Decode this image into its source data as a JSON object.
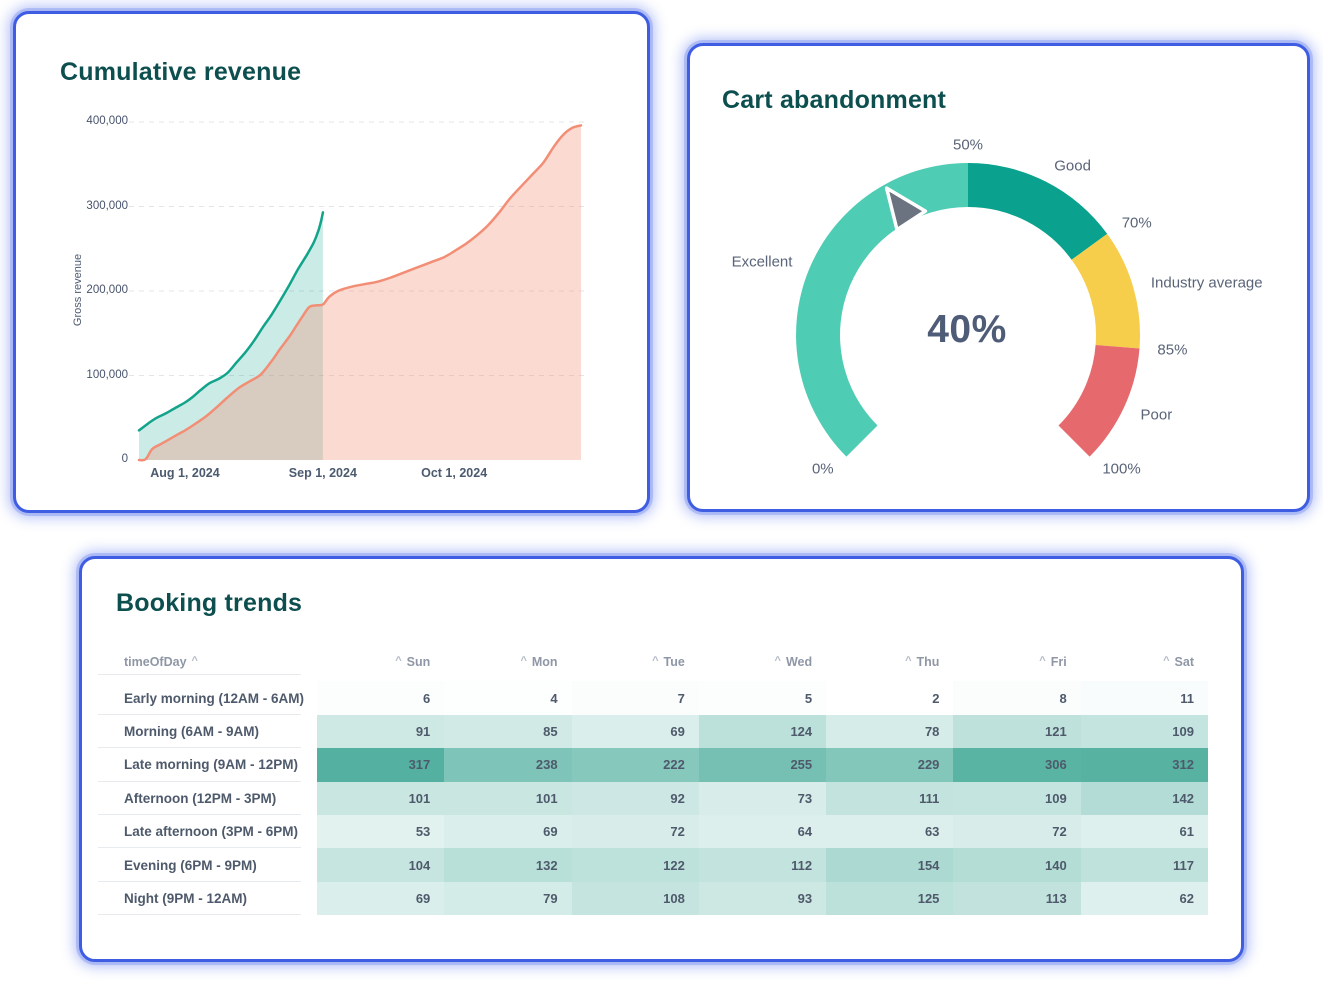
{
  "accent_border_color": "#3f5de2",
  "title_color": "#0d4f4e",
  "chart_data": [
    {
      "type": "area",
      "title": "Cumulative revenue",
      "xlabel": "",
      "ylabel": "Gross revenue",
      "ylim": [
        0,
        400000
      ],
      "grid": "horizontal-dashed",
      "legend": "none",
      "y_ticks": [
        {
          "value": 400000,
          "label": "400,000"
        },
        {
          "value": 300000,
          "label": "300,000"
        },
        {
          "value": 200000,
          "label": "200,000"
        },
        {
          "value": 100000,
          "label": "100,000"
        },
        {
          "value": 0,
          "label": "0"
        }
      ],
      "x_ticks": [
        {
          "t": 0.104,
          "label": "Aug 1, 2024"
        },
        {
          "t": 0.416,
          "label": "Sep 1, 2024"
        },
        {
          "t": 0.713,
          "label": "Oct 1, 2024"
        }
      ],
      "series": [
        {
          "name": "teal-series",
          "line_color": "#12a38b",
          "fill_color": "rgba(18,163,139,0.22)",
          "points": [
            [
              0,
              35000
            ],
            [
              0.02,
              43000
            ],
            [
              0.04,
              50000
            ],
            [
              0.06,
              55000
            ],
            [
              0.08,
              61000
            ],
            [
              0.104,
              68000
            ],
            [
              0.12,
              74000
            ],
            [
              0.14,
              83000
            ],
            [
              0.16,
              91000
            ],
            [
              0.18,
              96000
            ],
            [
              0.2,
              103000
            ],
            [
              0.22,
              115000
            ],
            [
              0.24,
              127000
            ],
            [
              0.26,
              141000
            ],
            [
              0.28,
              157000
            ],
            [
              0.3,
              172000
            ],
            [
              0.32,
              189000
            ],
            [
              0.34,
              207000
            ],
            [
              0.36,
              226000
            ],
            [
              0.38,
              243000
            ],
            [
              0.395,
              257000
            ],
            [
              0.405,
              270000
            ],
            [
              0.412,
              283000
            ],
            [
              0.416,
              293000
            ]
          ]
        },
        {
          "name": "orange-series",
          "line_color": "#f28e75",
          "fill_color": "rgba(242,142,117,0.33)",
          "points": [
            [
              0,
              0
            ],
            [
              0.015,
              1000
            ],
            [
              0.03,
              13000
            ],
            [
              0.05,
              19000
            ],
            [
              0.07,
              25000
            ],
            [
              0.09,
              31000
            ],
            [
              0.104,
              35000
            ],
            [
              0.125,
              42000
            ],
            [
              0.15,
              51000
            ],
            [
              0.175,
              62000
            ],
            [
              0.2,
              74000
            ],
            [
              0.225,
              85000
            ],
            [
              0.25,
              93000
            ],
            [
              0.275,
              101000
            ],
            [
              0.3,
              117000
            ],
            [
              0.32,
              132000
            ],
            [
              0.34,
              146000
            ],
            [
              0.355,
              158000
            ],
            [
              0.37,
              170000
            ],
            [
              0.385,
              181000
            ],
            [
              0.4,
              183000
            ],
            [
              0.416,
              184000
            ],
            [
              0.43,
              193000
            ],
            [
              0.45,
              200000
            ],
            [
              0.48,
              205000
            ],
            [
              0.51,
              208000
            ],
            [
              0.54,
              211000
            ],
            [
              0.57,
              216000
            ],
            [
              0.6,
              222000
            ],
            [
              0.63,
              228000
            ],
            [
              0.66,
              234000
            ],
            [
              0.69,
              240000
            ],
            [
              0.713,
              247000
            ],
            [
              0.74,
              256000
            ],
            [
              0.765,
              266000
            ],
            [
              0.79,
              278000
            ],
            [
              0.815,
              293000
            ],
            [
              0.84,
              310000
            ],
            [
              0.865,
              324000
            ],
            [
              0.89,
              338000
            ],
            [
              0.915,
              352000
            ],
            [
              0.94,
              372000
            ],
            [
              0.96,
              385000
            ],
            [
              0.98,
              393000
            ],
            [
              1,
              396000
            ]
          ]
        }
      ]
    },
    {
      "type": "gauge",
      "title": "Cart abandonment",
      "value": 40,
      "value_label": "40%",
      "min": 0,
      "max": 100,
      "start_angle_deg": 225,
      "end_angle_deg": -45,
      "needle_color": "#6b7280",
      "segments": [
        {
          "label": "Excellent",
          "from": 0,
          "to": 50,
          "color": "#4fccb4"
        },
        {
          "label": "Good",
          "from": 50,
          "to": 70,
          "color": "#0aa28e"
        },
        {
          "label": "Industry average",
          "from": 70,
          "to": 85,
          "color": "#f6ce4b"
        },
        {
          "label": "Poor",
          "from": 85,
          "to": 100,
          "color": "#e6696d"
        }
      ],
      "ticks": [
        {
          "value": 0,
          "label": "0%"
        },
        {
          "value": 50,
          "label": "50%"
        },
        {
          "value": 70,
          "label": "70%"
        },
        {
          "value": 85,
          "label": "85%"
        },
        {
          "value": 100,
          "label": "100%"
        }
      ]
    },
    {
      "type": "heatmap",
      "title": "Booking trends",
      "row_header": "timeOfDay",
      "sort_caret": "^",
      "columns": [
        "Sun",
        "Mon",
        "Tue",
        "Wed",
        "Thu",
        "Fri",
        "Sat"
      ],
      "rows": [
        "Early morning (12AM - 6AM)",
        "Morning (6AM - 9AM)",
        "Late morning (9AM - 12PM)",
        "Afternoon (12PM - 3PM)",
        "Late afternoon (3PM - 6PM)",
        "Evening (6PM - 9PM)",
        "Night (9PM - 12AM)"
      ],
      "values": [
        [
          6,
          4,
          7,
          5,
          2,
          8,
          11
        ],
        [
          91,
          85,
          69,
          124,
          78,
          121,
          109
        ],
        [
          317,
          238,
          222,
          255,
          229,
          306,
          312
        ],
        [
          101,
          101,
          92,
          73,
          111,
          109,
          142
        ],
        [
          53,
          69,
          72,
          64,
          63,
          72,
          61
        ],
        [
          104,
          132,
          122,
          112,
          154,
          140,
          117
        ],
        [
          69,
          79,
          108,
          93,
          125,
          113,
          62
        ]
      ],
      "color_scale": {
        "min_color": "#ffffff",
        "max_color": "#54b1a1",
        "max_value": 317
      },
      "cell_text_color": "#4e5a6b"
    }
  ]
}
